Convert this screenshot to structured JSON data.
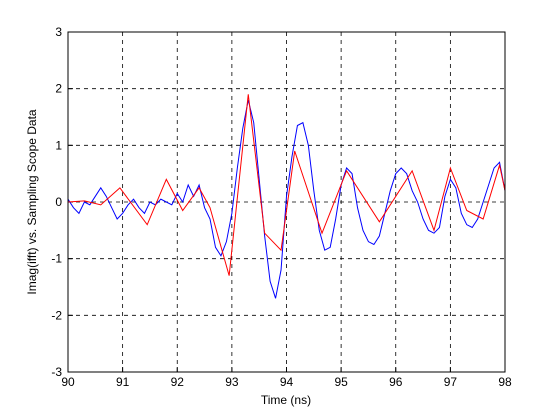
{
  "chart_data": {
    "type": "line",
    "xlabel": "Time (ns)",
    "ylabel": "Imag(ifft) vs. Sampling Scope Data",
    "xlim": [
      90,
      98
    ],
    "ylim": [
      -3,
      3
    ],
    "xticks": [
      90,
      91,
      92,
      93,
      94,
      95,
      96,
      97,
      98
    ],
    "yticks": [
      -3,
      -2,
      -1,
      0,
      1,
      2,
      3
    ],
    "grid": true,
    "series": [
      {
        "color": "#0000ff",
        "x": [
          90.0,
          90.1,
          90.2,
          90.3,
          90.4,
          90.5,
          90.6,
          90.7,
          90.8,
          90.9,
          91.0,
          91.1,
          91.2,
          91.3,
          91.4,
          91.5,
          91.6,
          91.7,
          91.8,
          91.9,
          92.0,
          92.1,
          92.2,
          92.3,
          92.4,
          92.5,
          92.6,
          92.7,
          92.8,
          92.9,
          93.0,
          93.1,
          93.2,
          93.3,
          93.4,
          93.5,
          93.6,
          93.7,
          93.8,
          93.9,
          94.0,
          94.1,
          94.2,
          94.3,
          94.4,
          94.5,
          94.6,
          94.7,
          94.8,
          94.9,
          95.0,
          95.1,
          95.2,
          95.3,
          95.4,
          95.5,
          95.6,
          95.7,
          95.8,
          95.9,
          96.0,
          96.1,
          96.2,
          96.3,
          96.4,
          96.5,
          96.6,
          96.7,
          96.8,
          96.9,
          97.0,
          97.1,
          97.2,
          97.3,
          97.4,
          97.5,
          97.6,
          97.7,
          97.8,
          97.9,
          98.0
        ],
        "values": [
          0.05,
          -0.1,
          -0.2,
          0.0,
          -0.05,
          0.1,
          0.25,
          0.1,
          -0.1,
          -0.3,
          -0.2,
          -0.05,
          0.05,
          -0.1,
          -0.2,
          0.0,
          -0.05,
          0.05,
          0.0,
          -0.05,
          0.15,
          0.0,
          0.3,
          0.1,
          0.3,
          -0.1,
          -0.3,
          -0.8,
          -0.95,
          -0.7,
          -0.2,
          0.6,
          1.3,
          1.8,
          1.4,
          0.4,
          -0.6,
          -1.4,
          -1.7,
          -1.2,
          0.1,
          0.8,
          1.35,
          1.4,
          1.0,
          0.2,
          -0.5,
          -0.85,
          -0.8,
          -0.3,
          0.3,
          0.6,
          0.5,
          -0.1,
          -0.5,
          -0.7,
          -0.75,
          -0.6,
          -0.2,
          0.2,
          0.5,
          0.6,
          0.5,
          0.2,
          0.0,
          -0.3,
          -0.5,
          -0.55,
          -0.45,
          0.1,
          0.4,
          0.25,
          -0.2,
          -0.4,
          -0.45,
          -0.3,
          0.0,
          0.3,
          0.6,
          0.7,
          0.2
        ]
      },
      {
        "color": "#ff0000",
        "x": [
          90.0,
          90.3,
          90.6,
          90.95,
          91.45,
          91.8,
          92.1,
          92.4,
          92.6,
          92.95,
          93.3,
          93.6,
          93.9,
          94.15,
          94.65,
          95.1,
          95.7,
          96.3,
          96.7,
          97.0,
          97.3,
          97.6,
          97.9,
          98.0
        ],
        "values": [
          0.0,
          0.02,
          -0.05,
          0.25,
          -0.4,
          0.4,
          -0.15,
          0.25,
          -0.1,
          -1.3,
          1.9,
          -0.55,
          -0.85,
          0.9,
          -0.55,
          0.55,
          -0.35,
          0.55,
          -0.5,
          0.6,
          -0.15,
          -0.3,
          0.65,
          0.2
        ]
      }
    ]
  }
}
